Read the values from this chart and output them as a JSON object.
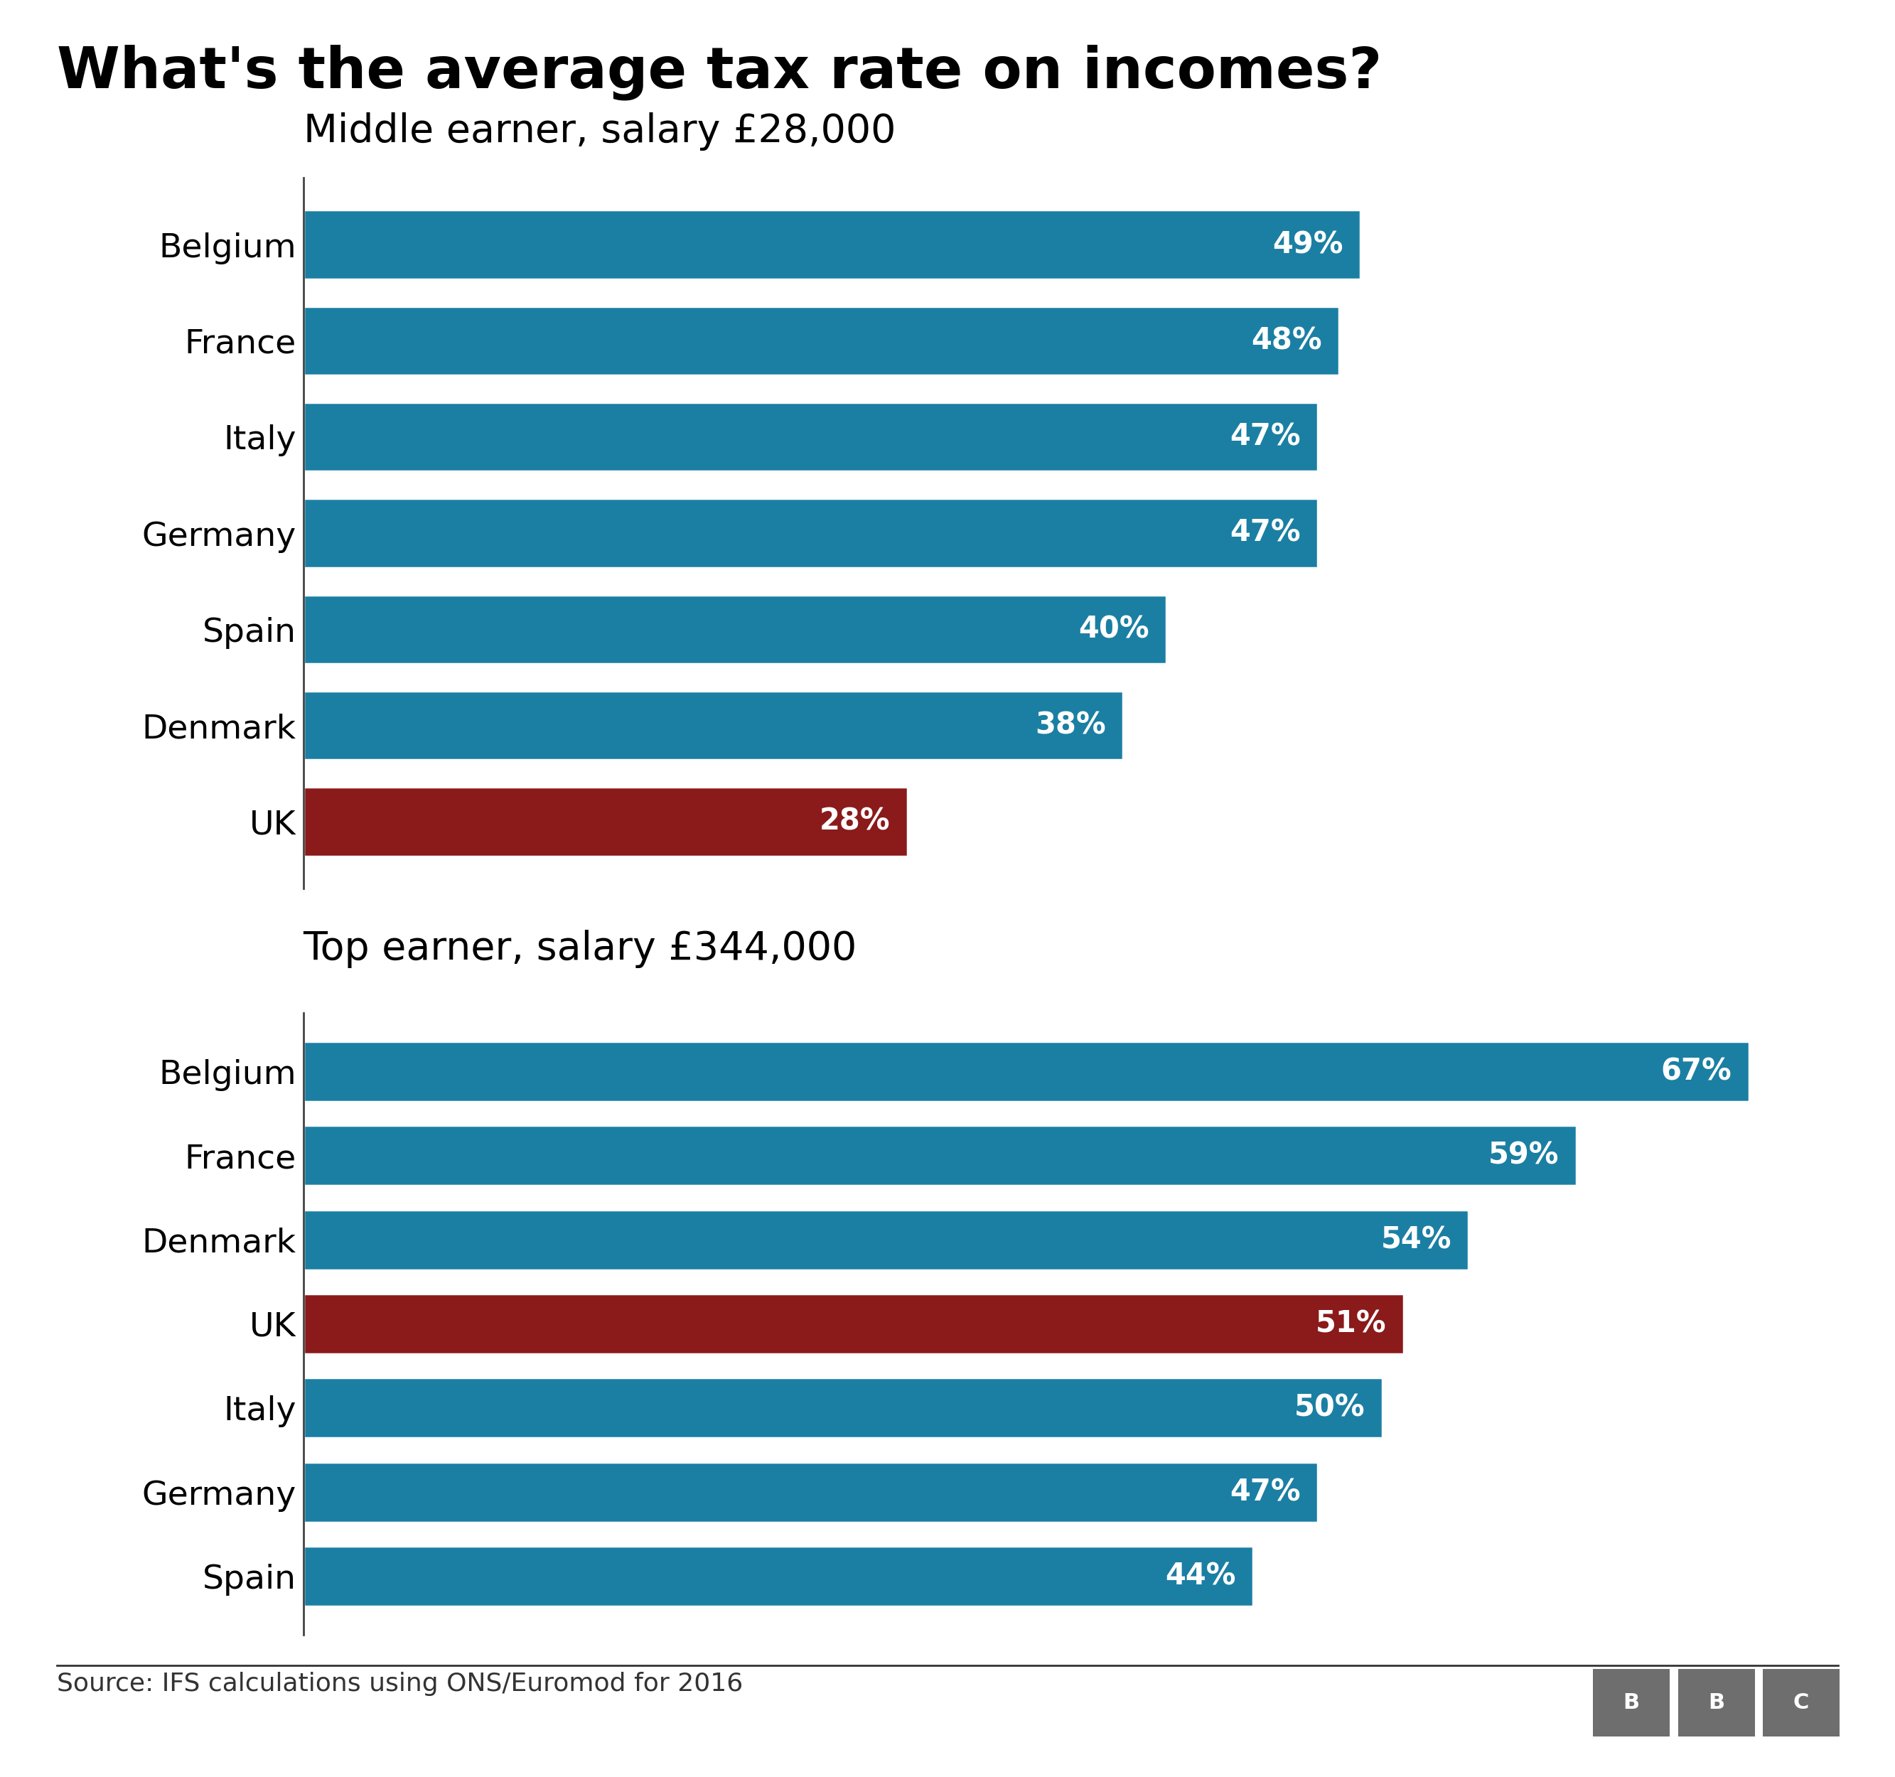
{
  "title": "What's the average tax rate on incomes?",
  "title_fontsize": 58,
  "subtitle1": "Middle earner, salary £28,000",
  "subtitle2": "Top earner, salary £344,000",
  "subtitle_fontsize": 40,
  "chart1_countries": [
    "Belgium",
    "France",
    "Italy",
    "Germany",
    "Spain",
    "Denmark",
    "UK"
  ],
  "chart1_values": [
    49,
    48,
    47,
    47,
    40,
    38,
    28
  ],
  "chart1_colors": [
    "#1b7fa3",
    "#1b7fa3",
    "#1b7fa3",
    "#1b7fa3",
    "#1b7fa3",
    "#1b7fa3",
    "#8b1a1a"
  ],
  "chart2_countries": [
    "Belgium",
    "France",
    "Denmark",
    "UK",
    "Italy",
    "Germany",
    "Spain"
  ],
  "chart2_values": [
    67,
    59,
    54,
    51,
    50,
    47,
    44
  ],
  "chart2_colors": [
    "#1b7fa3",
    "#1b7fa3",
    "#1b7fa3",
    "#8b1a1a",
    "#1b7fa3",
    "#1b7fa3",
    "#1b7fa3"
  ],
  "bar_color_blue": "#1b7fa3",
  "bar_color_red": "#8b1a1a",
  "label_fontsize": 34,
  "value_fontsize": 30,
  "source_text": "Source: IFS calculations using ONS/Euromod for 2016",
  "source_fontsize": 26,
  "background_color": "#ffffff",
  "text_color": "#000000",
  "bar_label_color": "#ffffff",
  "xlim": [
    0,
    72
  ],
  "bbc_gray": "#6e6e6e"
}
